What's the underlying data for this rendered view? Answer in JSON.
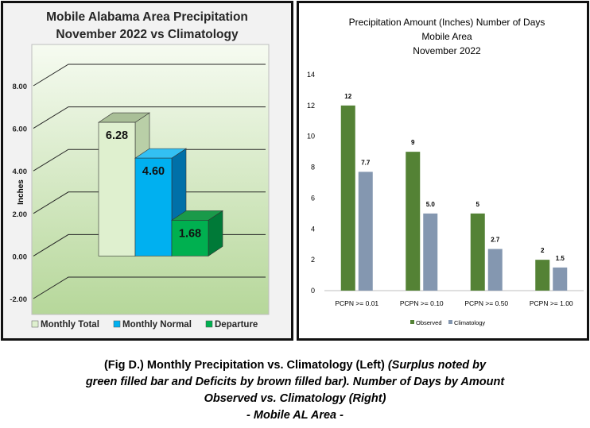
{
  "chart_data": [
    {
      "type": "bar",
      "title": "Mobile Alabama Area Precipitation",
      "subtitle": "November 2022 vs Climatology",
      "ylabel": "Inches",
      "ylim": [
        -2,
        8
      ],
      "yticks": [
        "-2.00",
        "0.00",
        "2.00",
        "4.00",
        "6.00",
        "8.00"
      ],
      "grid": true,
      "legend_position": "bottom",
      "series": [
        {
          "name": "Monthly Total",
          "value": 6.28,
          "label": "6.28",
          "color": "#dff0cf",
          "side": "#b9cfa7",
          "top": "#a9bf97"
        },
        {
          "name": "Monthly Normal",
          "value": 4.6,
          "label": "4.60",
          "color": "#00b0f0",
          "side": "#0070a8",
          "top": "#33c0f3"
        },
        {
          "name": "Departure",
          "value": 1.68,
          "label": "1.68",
          "color": "#00b050",
          "side": "#007a38",
          "top": "#1a9a4a"
        }
      ]
    },
    {
      "type": "bar",
      "title": "Precipitation Amount (Inches) Number of Days",
      "subtitle": "Mobile Area",
      "subtitle2": "November 2022",
      "ylim": [
        0,
        14
      ],
      "yticks": [
        "0",
        "2",
        "4",
        "6",
        "8",
        "10",
        "12",
        "14"
      ],
      "grid": false,
      "legend_position": "bottom",
      "categories": [
        "PCPN >= 0.01",
        "PCPN >= 0.10",
        "PCPN >= 0.50",
        "PCPN >= 1.00"
      ],
      "series": [
        {
          "name": "Observed",
          "values": [
            12,
            9,
            5,
            2
          ],
          "labels": [
            "12",
            "9",
            "5",
            "2"
          ],
          "color": "#548235"
        },
        {
          "name": "Climatology",
          "values": [
            7.7,
            5.0,
            2.7,
            1.5
          ],
          "labels": [
            "7.7",
            "5.0",
            "2.7",
            "1.5"
          ],
          "color": "#8497b0"
        }
      ]
    }
  ],
  "caption": {
    "line1_normal": "(Fig D.) Monthly Precipitation vs. Climatology (Left) ",
    "line1_italic": "(Surplus noted by",
    "line2": "green filled bar and Deficits by brown filled bar). Number of Days by Amount",
    "line3": "Observed vs. Climatology (Right)",
    "line4": "- Mobile AL Area -"
  }
}
